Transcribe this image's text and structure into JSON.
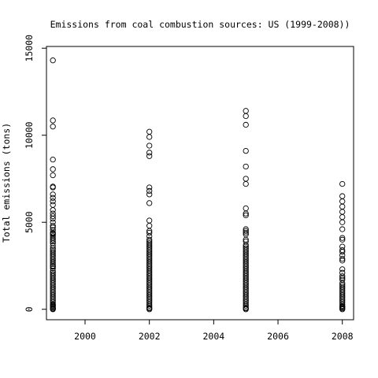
{
  "chart_data": {
    "type": "scatter",
    "title": "Emissions from coal combustion sources:  US (1999-2008))",
    "xlabel": "",
    "ylabel": "Total emissions (tons)",
    "xlim": [
      1998.8,
      2008.35
    ],
    "ylim": [
      -600,
      15100
    ],
    "x_ticks": [
      2000,
      2002,
      2004,
      2006,
      2008
    ],
    "x_tick_labels": [
      "2000",
      "2002",
      "2004",
      "2006",
      "2008"
    ],
    "y_ticks": [
      0,
      5000,
      10000,
      15000
    ],
    "y_tick_labels": [
      "0",
      "5000",
      "10000",
      "15000"
    ],
    "grid": false,
    "marker": "open-circle",
    "series": [
      {
        "x": 1999,
        "values": [
          14300,
          10850,
          10500,
          8600,
          8050,
          7700,
          7050,
          7000,
          6600,
          6400,
          6200,
          6000,
          5700,
          5500,
          5350,
          5200,
          5000,
          4800,
          4700,
          4550,
          4400,
          4350,
          4300,
          4200,
          4100,
          4000,
          3900,
          3800,
          3650,
          3500,
          3400,
          3300,
          3200,
          3100,
          3000,
          2900,
          2800,
          2700,
          2600,
          2500,
          2450,
          2350,
          2200,
          2100,
          2000,
          1900,
          1800,
          1700,
          1600,
          1500,
          1400,
          1300,
          1200,
          1100,
          1000,
          900,
          800,
          700,
          600,
          500,
          400,
          300,
          250,
          200,
          150,
          100,
          50,
          20,
          0
        ]
      },
      {
        "x": 2002,
        "values": [
          10200,
          9900,
          9400,
          9000,
          8800,
          7000,
          6800,
          6600,
          6100,
          5100,
          4800,
          4500,
          4400,
          4200,
          4000,
          3900,
          3800,
          3700,
          3600,
          3500,
          3400,
          3300,
          3200,
          3100,
          3000,
          2900,
          2800,
          2700,
          2600,
          2500,
          2400,
          2300,
          2200,
          2100,
          2000,
          1900,
          1800,
          1700,
          1600,
          1500,
          1400,
          1300,
          1200,
          1100,
          1000,
          900,
          800,
          700,
          600,
          500,
          400,
          300,
          200,
          100,
          50,
          0
        ]
      },
      {
        "x": 2005,
        "values": [
          11400,
          11100,
          10600,
          9100,
          8200,
          7500,
          7200,
          5800,
          5500,
          5400,
          4600,
          4500,
          4400,
          4300,
          4000,
          3900,
          3700,
          3600,
          3500,
          3400,
          3300,
          3200,
          3100,
          3000,
          2900,
          2800,
          2700,
          2600,
          2500,
          2400,
          2300,
          2200,
          2100,
          2000,
          1900,
          1800,
          1700,
          1600,
          1500,
          1400,
          1300,
          1200,
          1100,
          1000,
          900,
          800,
          700,
          600,
          500,
          400,
          300,
          200,
          100,
          50,
          0
        ]
      },
      {
        "x": 2008,
        "values": [
          7200,
          6500,
          6200,
          5900,
          5600,
          5300,
          5000,
          4600,
          4100,
          4000,
          3600,
          3400,
          3300,
          3100,
          2900,
          2800,
          2300,
          2100,
          1900,
          1800,
          1700,
          1500,
          1400,
          1300,
          1200,
          1100,
          1000,
          900,
          800,
          700,
          600,
          500,
          400,
          300,
          200,
          150,
          100,
          50,
          0
        ]
      }
    ]
  }
}
